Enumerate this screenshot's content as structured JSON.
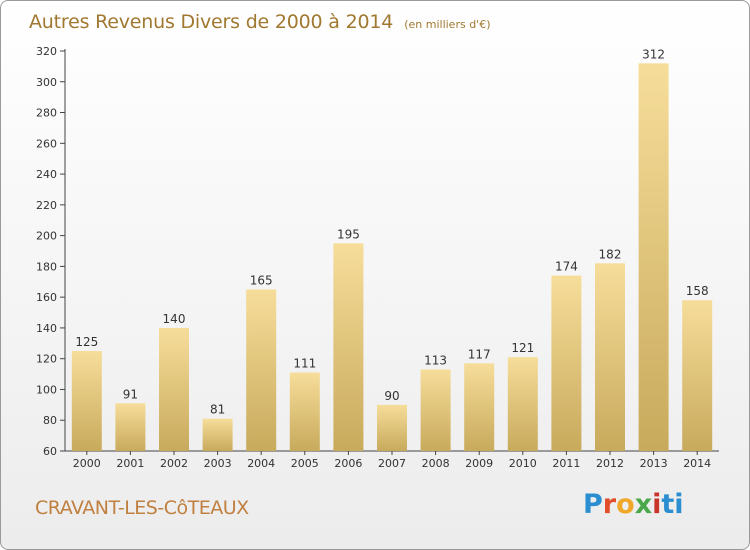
{
  "header": {
    "title": "Autres Revenus Divers de 2000 à 2014",
    "unit": "(en milliers d'€)"
  },
  "footer": {
    "commune": "CRAVANT-LES-CôTEAUX",
    "brand": "Proxiti"
  },
  "colors": {
    "bar_light": "#f6dd9a",
    "bar_dark": "#c8aa5c",
    "title": "#a07830",
    "commune": "#c08040"
  },
  "chart_data": {
    "type": "bar",
    "title": "Autres Revenus Divers de 2000 à 2014",
    "subtitle": "(en milliers d'€)",
    "xlabel": "",
    "ylabel": "",
    "ylim": [
      60,
      320
    ],
    "ytick_step": 20,
    "grid": false,
    "legend": "none",
    "categories": [
      "2000",
      "2001",
      "2002",
      "2003",
      "2004",
      "2005",
      "2006",
      "2007",
      "2008",
      "2009",
      "2010",
      "2011",
      "2012",
      "2013",
      "2014"
    ],
    "values": [
      125,
      91,
      140,
      81,
      165,
      111,
      195,
      90,
      113,
      117,
      121,
      174,
      182,
      312,
      158
    ],
    "data_labels": [
      "125",
      "91",
      "140",
      "81",
      "165",
      "111",
      "195",
      "90",
      "113",
      "117",
      "121",
      "174",
      "182",
      "312",
      "158"
    ]
  }
}
